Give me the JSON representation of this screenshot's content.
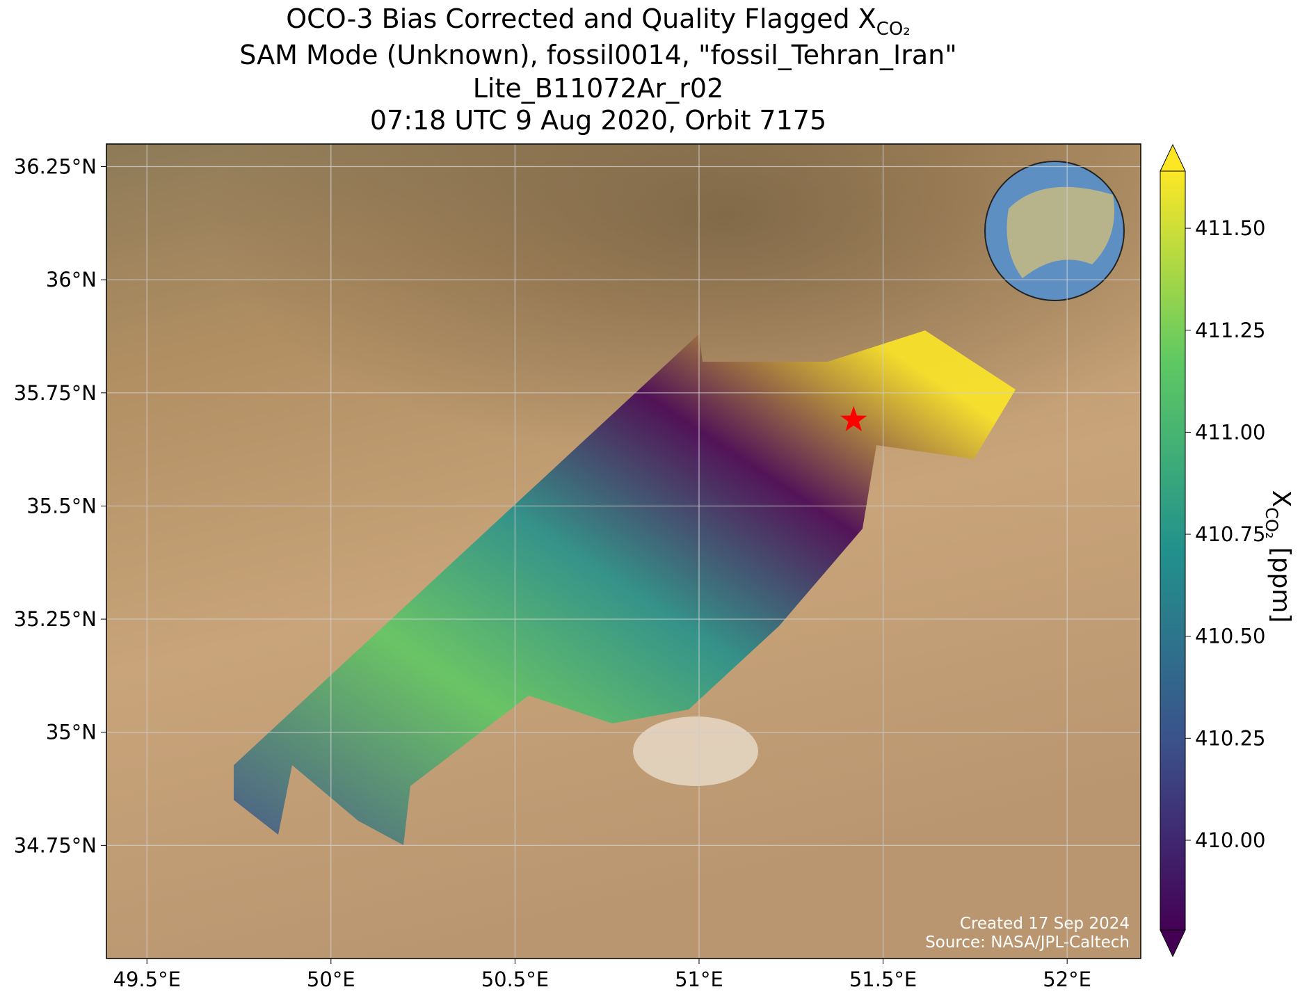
{
  "chart_data": {
    "type": "map",
    "title": "OCO-3 Bias Corrected and Quality Flagged X",
    "title_subscript": "CO₂",
    "subtitle_lines": [
      "SAM Mode (Unknown), fossil0014, \"fossil_Tehran_Iran\"",
      "Lite_B11072Ar_r02",
      "07:18 UTC 9 Aug 2020, Orbit 7175"
    ],
    "xlim": [
      49.39,
      52.2
    ],
    "ylim": [
      34.5,
      36.3
    ],
    "xticks": [
      {
        "value": 49.5,
        "label": "49.5°E"
      },
      {
        "value": 50,
        "label": "50°E"
      },
      {
        "value": 50.5,
        "label": "50.5°E"
      },
      {
        "value": 51,
        "label": "51°E"
      },
      {
        "value": 51.5,
        "label": "51.5°E"
      },
      {
        "value": 52,
        "label": "52°E"
      }
    ],
    "yticks": [
      {
        "value": 34.75,
        "label": "34.75°N"
      },
      {
        "value": 35,
        "label": "35°N"
      },
      {
        "value": 35.25,
        "label": "35.25°N"
      },
      {
        "value": 35.5,
        "label": "35.5°N"
      },
      {
        "value": 35.75,
        "label": "35.75°N"
      },
      {
        "value": 36,
        "label": "36°N"
      },
      {
        "value": 36.25,
        "label": "36.25°N"
      }
    ],
    "grid": true,
    "target": {
      "lon": 51.42,
      "lat": 35.69,
      "color": "#ff0000"
    },
    "colorbar": {
      "label": "X",
      "label_subscript": "CO₂",
      "label_unit": "[ppm]",
      "clim": [
        409.78,
        411.64
      ],
      "colormap": [
        "#440154",
        "#3b528b",
        "#21918c",
        "#5ec962",
        "#fde725"
      ],
      "ticks": [
        {
          "value": 410,
          "label": "410.00"
        },
        {
          "value": 410.25,
          "label": "410.25"
        },
        {
          "value": 410.5,
          "label": "410.50"
        },
        {
          "value": 410.75,
          "label": "410.75"
        },
        {
          "value": 411,
          "label": "411.00"
        },
        {
          "value": 411.25,
          "label": "411.25"
        },
        {
          "value": 411.5,
          "label": "411.50"
        }
      ]
    },
    "annotations": [
      "Created 17 Sep 2024",
      "Source: NASA/JPL-Caltech"
    ]
  }
}
